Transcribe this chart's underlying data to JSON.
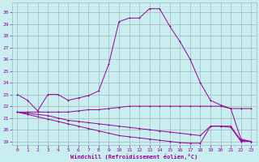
{
  "xlabel": "Windchill (Refroidissement éolien,°C)",
  "bg_color": "#c8eef0",
  "grid_color": "#a0b8c0",
  "line_color": "#990099",
  "xlim": [
    -0.5,
    23.5
  ],
  "ylim": [
    18.7,
    30.8
  ],
  "yticks": [
    19,
    20,
    21,
    22,
    23,
    24,
    25,
    26,
    27,
    28,
    29,
    30
  ],
  "xticks": [
    0,
    1,
    2,
    3,
    4,
    5,
    6,
    7,
    8,
    9,
    10,
    11,
    12,
    13,
    14,
    15,
    16,
    17,
    18,
    19,
    20,
    21,
    22,
    23
  ],
  "line1_x": [
    0,
    1,
    2,
    3,
    4,
    5,
    6,
    7,
    8,
    9,
    10,
    11,
    12,
    13,
    14,
    15,
    16,
    17,
    18,
    19,
    20,
    21,
    22,
    23
  ],
  "line1_y": [
    23.0,
    22.5,
    21.6,
    23.0,
    23.0,
    22.5,
    22.7,
    22.9,
    23.3,
    25.6,
    29.2,
    29.5,
    29.5,
    30.3,
    30.3,
    28.8,
    27.5,
    26.0,
    24.0,
    22.5,
    22.1,
    21.8,
    21.8,
    21.8
  ],
  "line2_x": [
    0,
    1,
    2,
    3,
    4,
    5,
    6,
    7,
    8,
    9,
    10,
    11,
    12,
    13,
    14,
    15,
    16,
    17,
    18,
    19,
    20,
    21,
    22,
    23
  ],
  "line2_y": [
    21.5,
    21.5,
    21.5,
    21.5,
    21.5,
    21.5,
    21.6,
    21.7,
    21.7,
    21.8,
    21.9,
    22.0,
    22.0,
    22.0,
    22.0,
    22.0,
    22.0,
    22.0,
    22.0,
    22.0,
    22.0,
    21.8,
    19.2,
    19.0
  ],
  "line3_x": [
    0,
    1,
    2,
    3,
    4,
    5,
    6,
    7,
    8,
    9,
    10,
    11,
    12,
    13,
    14,
    15,
    16,
    17,
    18,
    19,
    20,
    21,
    22,
    23
  ],
  "line3_y": [
    21.5,
    21.4,
    21.3,
    21.2,
    21.0,
    20.8,
    20.7,
    20.6,
    20.5,
    20.4,
    20.3,
    20.2,
    20.1,
    20.0,
    19.9,
    19.8,
    19.7,
    19.6,
    19.5,
    20.3,
    20.3,
    20.3,
    19.1,
    19.0
  ],
  "line4_x": [
    0,
    1,
    2,
    3,
    4,
    5,
    6,
    7,
    8,
    9,
    10,
    11,
    12,
    13,
    14,
    15,
    16,
    17,
    18,
    19,
    20,
    21,
    22,
    23
  ],
  "line4_y": [
    21.5,
    21.3,
    21.1,
    20.9,
    20.7,
    20.5,
    20.3,
    20.1,
    19.9,
    19.7,
    19.5,
    19.4,
    19.3,
    19.2,
    19.1,
    19.0,
    18.9,
    18.85,
    18.85,
    20.3,
    20.3,
    20.2,
    19.0,
    19.0
  ]
}
